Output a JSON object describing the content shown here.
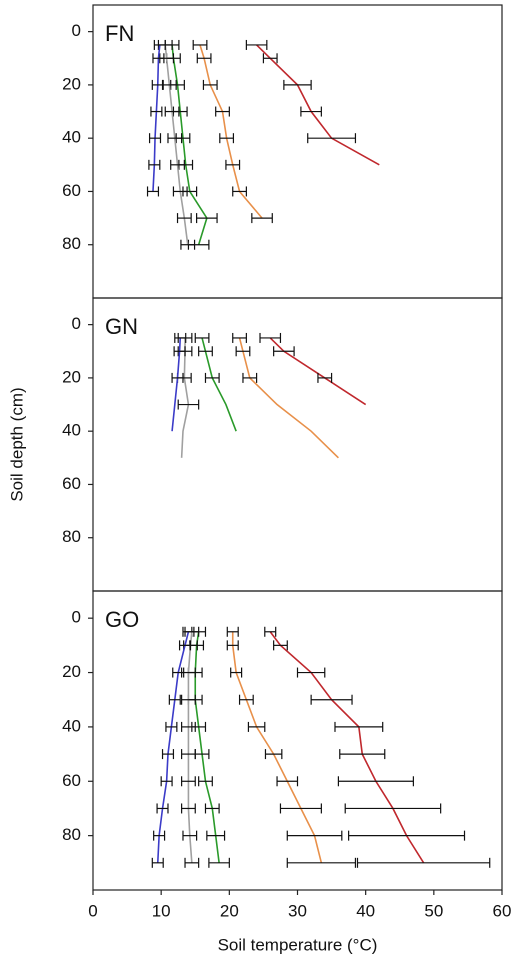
{
  "chart_data": [
    {
      "type": "line",
      "label": "FN",
      "xlim": [
        0,
        60
      ],
      "ylim": [
        100,
        -10
      ],
      "yticks": [
        0,
        20,
        40,
        60,
        80
      ],
      "y": [
        5,
        10,
        20,
        30,
        40,
        50,
        60,
        70,
        80
      ],
      "series": [
        {
          "color": "#c0282d",
          "values": [
            24,
            26,
            30,
            32,
            35,
            42,
            null,
            null,
            null
          ],
          "errors": [
            1.5,
            1,
            2,
            1.5,
            3.5,
            null,
            null,
            null,
            null
          ]
        },
        {
          "color": "#e8904a",
          "values": [
            15.7,
            16.3,
            17.2,
            19,
            19.6,
            20.5,
            21.5,
            24.8,
            null
          ],
          "errors": [
            1,
            1,
            1,
            1,
            1,
            1,
            1,
            1.5,
            null
          ]
        },
        {
          "color": "#2a9a2a",
          "values": [
            11.6,
            11.8,
            12.4,
            12.8,
            13.2,
            13.6,
            14.2,
            16.7,
            15.5
          ],
          "errors": [
            1,
            1,
            1,
            1,
            1,
            1,
            1,
            1.5,
            1.5
          ]
        },
        {
          "color": "#a0a0a0",
          "values": [
            10.6,
            10.8,
            11.2,
            11.6,
            12,
            12.4,
            12.8,
            13.4,
            13.9
          ],
          "errors": [
            1,
            1,
            1,
            1,
            1,
            1,
            1,
            1,
            1
          ]
        },
        {
          "color": "#3b3bc8",
          "values": [
            9.8,
            9.6,
            9.5,
            9.3,
            9.1,
            9,
            8.8,
            null,
            null
          ],
          "errors": [
            0.8,
            0.8,
            0.8,
            0.8,
            0.8,
            0.8,
            0.8,
            null,
            null
          ]
        }
      ]
    },
    {
      "type": "line",
      "label": "GN",
      "ylabel": "Soil depth (cm)",
      "xlim": [
        0,
        60
      ],
      "ylim": [
        100,
        -10
      ],
      "yticks": [
        0,
        20,
        40,
        60,
        80
      ],
      "y": [
        5,
        10,
        20,
        30,
        40,
        50
      ],
      "series": [
        {
          "color": "#c0282d",
          "values": [
            26,
            28,
            34,
            40,
            null,
            null
          ],
          "errors": [
            1.5,
            1.5,
            1,
            null,
            null,
            null
          ]
        },
        {
          "color": "#e8904a",
          "values": [
            21.5,
            22,
            23,
            27,
            32,
            36
          ],
          "errors": [
            1,
            1,
            1,
            null,
            null,
            null
          ]
        },
        {
          "color": "#2a9a2a",
          "values": [
            16,
            16.5,
            17.5,
            19.5,
            21,
            null
          ],
          "errors": [
            1,
            1,
            1,
            null,
            null,
            null
          ]
        },
        {
          "color": "#a0a0a0",
          "values": [
            13.5,
            13.5,
            13.4,
            14,
            13.2,
            13
          ],
          "errors": [
            1,
            1,
            1,
            1.5,
            null,
            null
          ]
        },
        {
          "color": "#3b3bc8",
          "values": [
            12.8,
            12.7,
            12.4,
            12,
            11.6,
            null
          ],
          "errors": [
            0.8,
            0.8,
            0.8,
            null,
            null,
            null
          ]
        }
      ]
    },
    {
      "type": "line",
      "label": "GO",
      "xlabel": "Soil temperature (°C)",
      "xlim": [
        0,
        60
      ],
      "xticks": [
        0,
        10,
        20,
        30,
        40,
        50,
        60
      ],
      "ylim": [
        100,
        -10
      ],
      "yticks": [
        0,
        20,
        40,
        60,
        80
      ],
      "y": [
        5,
        10,
        20,
        30,
        40,
        50,
        60,
        70,
        80,
        90
      ],
      "series": [
        {
          "color": "#c0282d",
          "values": [
            26,
            27.5,
            32,
            35,
            39,
            39.5,
            41.5,
            44,
            46,
            48.5
          ],
          "errors": [
            0.8,
            1,
            2,
            3,
            3.5,
            3.3,
            5.5,
            7,
            8.5,
            9.7
          ]
        },
        {
          "color": "#e8904a",
          "values": [
            20.5,
            20.5,
            21,
            22.5,
            24,
            26.5,
            28.5,
            30.5,
            32.5,
            33.5
          ],
          "errors": [
            0.8,
            0.8,
            0.8,
            1,
            1.2,
            1.2,
            1.5,
            3,
            4,
            5
          ]
        },
        {
          "color": "#2a9a2a",
          "values": [
            15.5,
            15.2,
            15,
            15,
            15.5,
            16,
            16.5,
            17.5,
            18,
            18.5
          ],
          "errors": [
            1,
            1,
            1,
            1,
            1,
            1,
            1,
            1,
            1.3,
            1.5
          ]
        },
        {
          "color": "#a0a0a0",
          "values": [
            14.5,
            14.3,
            14,
            14,
            14,
            14,
            14,
            14,
            14.2,
            14.5
          ],
          "errors": [
            1,
            1,
            1,
            1,
            1,
            1,
            1,
            1,
            1,
            1
          ]
        },
        {
          "color": "#3b3bc8",
          "values": [
            14,
            13.5,
            12.5,
            12,
            11.5,
            11,
            10.8,
            10.2,
            9.7,
            9.5
          ],
          "errors": [
            0.8,
            0.8,
            0.8,
            0.8,
            0.8,
            0.8,
            0.8,
            0.8,
            0.8,
            0.8
          ]
        }
      ]
    }
  ]
}
